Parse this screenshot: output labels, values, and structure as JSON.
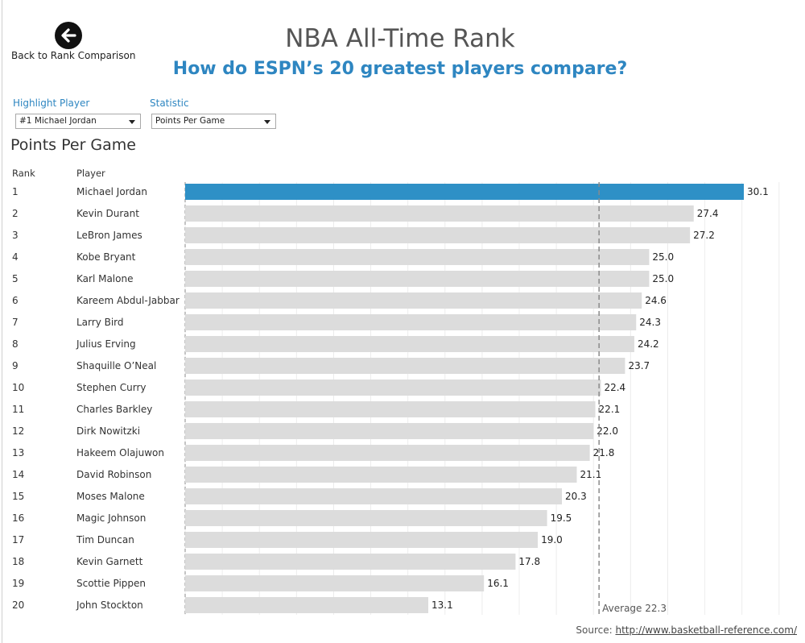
{
  "header": {
    "back_label": "Back to Rank Comparison",
    "title": "NBA All-Time Rank",
    "subtitle": "How do ESPN’s 20 greatest players compare?"
  },
  "filters": {
    "highlight_label": "Highlight Player",
    "highlight_value": "#1 Michael Jordan",
    "statistic_label": "Statistic",
    "statistic_value": "Points Per Game"
  },
  "columns": {
    "rank": "Rank",
    "player": "Player"
  },
  "source": {
    "label": "Source:",
    "url": "http://www.basketball-reference.com/"
  },
  "colors": {
    "highlight": "#2e90c6",
    "bar": "#dcdcdc",
    "accent": "#2e86c1"
  },
  "icons": {
    "back": "arrow-left-circle-icon"
  },
  "chart_data": {
    "type": "bar",
    "orientation": "horizontal",
    "title": "Points Per Game",
    "highlight": "Michael Jordan",
    "average": {
      "label": "Average 22.3",
      "value": 22.3
    },
    "xlim": [
      0,
      32
    ],
    "grid": true,
    "rows": [
      {
        "rank": "1",
        "player": "Michael Jordan",
        "value": 30.1
      },
      {
        "rank": "2",
        "player": "Kevin Durant",
        "value": 27.4
      },
      {
        "rank": "3",
        "player": "LeBron James",
        "value": 27.2
      },
      {
        "rank": "4",
        "player": "Kobe Bryant",
        "value": 25.0
      },
      {
        "rank": "5",
        "player": "Karl Malone",
        "value": 25.0
      },
      {
        "rank": "6",
        "player": "Kareem Abdul-Jabbar",
        "value": 24.6
      },
      {
        "rank": "7",
        "player": "Larry Bird",
        "value": 24.3
      },
      {
        "rank": "8",
        "player": "Julius Erving",
        "value": 24.2
      },
      {
        "rank": "9",
        "player": "Shaquille O’Neal",
        "value": 23.7
      },
      {
        "rank": "10",
        "player": "Stephen Curry",
        "value": 22.4
      },
      {
        "rank": "11",
        "player": "Charles Barkley",
        "value": 22.1
      },
      {
        "rank": "12",
        "player": "Dirk Nowitzki",
        "value": 22.0
      },
      {
        "rank": "13",
        "player": "Hakeem Olajuwon",
        "value": 21.8
      },
      {
        "rank": "14",
        "player": "David Robinson",
        "value": 21.1
      },
      {
        "rank": "15",
        "player": "Moses Malone",
        "value": 20.3
      },
      {
        "rank": "16",
        "player": "Magic Johnson",
        "value": 19.5
      },
      {
        "rank": "17",
        "player": "Tim Duncan",
        "value": 19.0
      },
      {
        "rank": "18",
        "player": "Kevin Garnett",
        "value": 17.8
      },
      {
        "rank": "19",
        "player": "Scottie Pippen",
        "value": 16.1
      },
      {
        "rank": "20",
        "player": "John Stockton",
        "value": 13.1
      }
    ]
  }
}
